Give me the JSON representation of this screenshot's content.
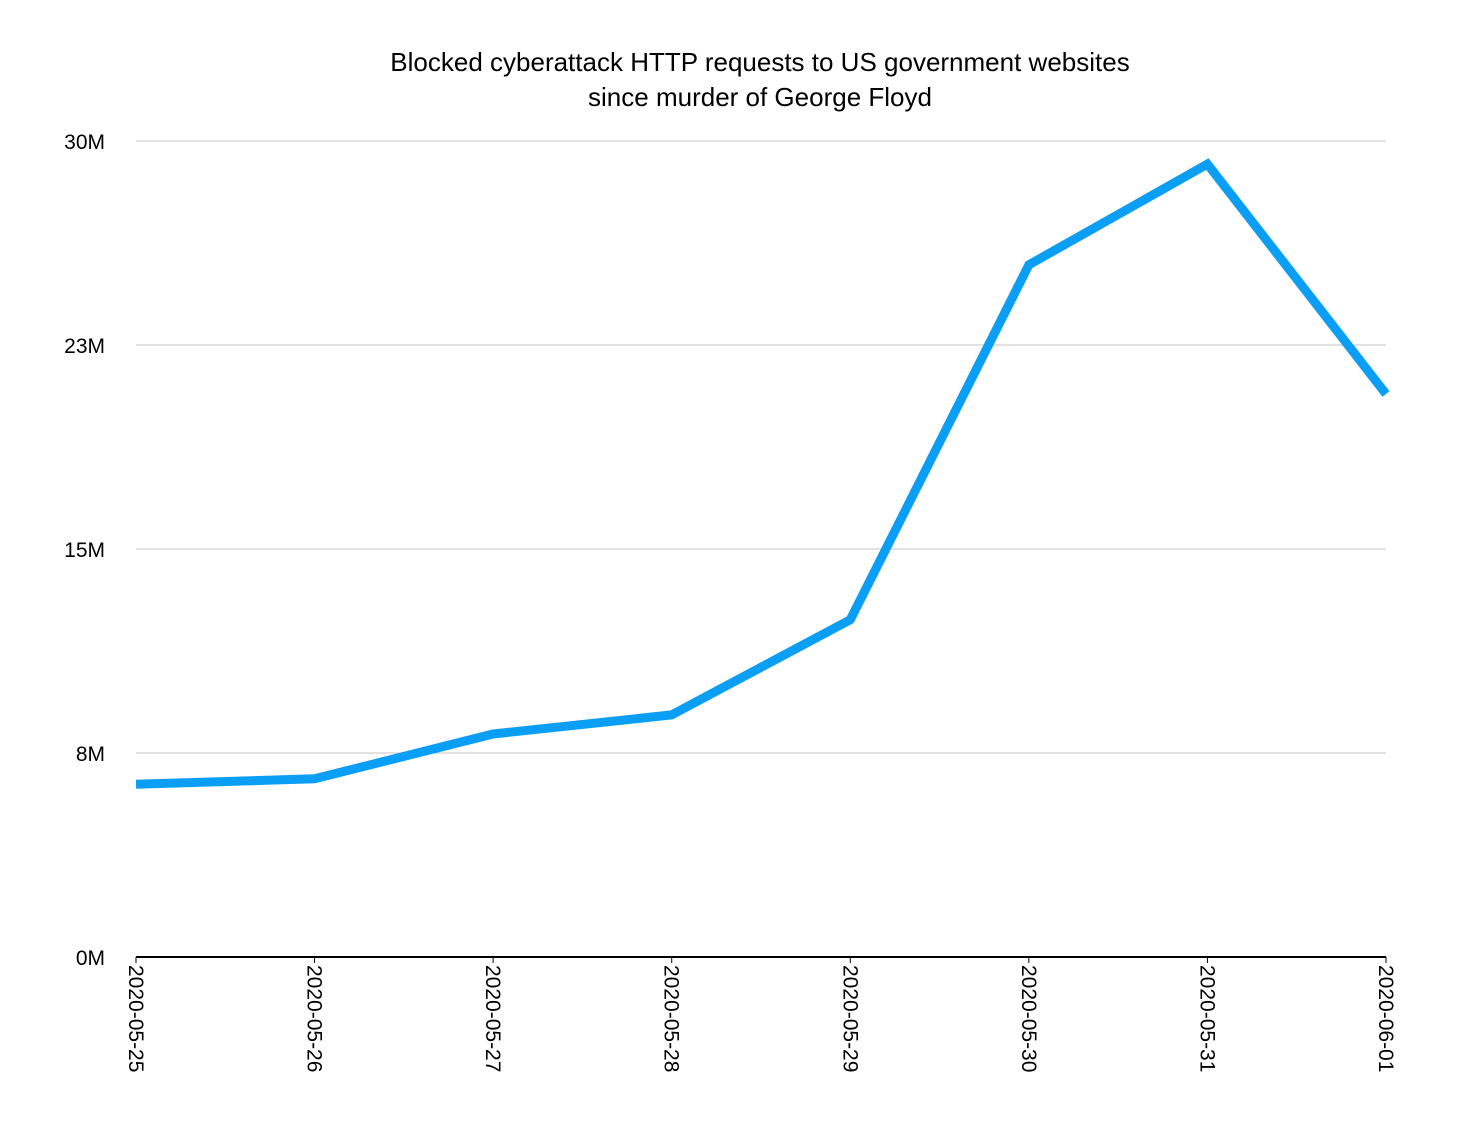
{
  "chart_data": {
    "type": "line",
    "title_lines": [
      "Blocked cyberattack HTTP requests to US government websites",
      "since murder of George Floyd"
    ],
    "xlabel": "",
    "ylabel": "",
    "categories": [
      "2020-05-25",
      "2020-05-26",
      "2020-05-27",
      "2020-05-28",
      "2020-05-29",
      "2020-05-30",
      "2020-05-31",
      "2020-06-01"
    ],
    "series": [
      {
        "values": [
          6.35,
          6.55,
          8.2,
          8.9,
          12.4,
          25.45,
          29.15,
          20.7
        ],
        "color": "#0a9ef5"
      }
    ],
    "ylim": [
      0,
      30
    ],
    "yticks": [
      {
        "value": 0,
        "label": "0M"
      },
      {
        "value": 7.5,
        "label": "8M"
      },
      {
        "value": 15,
        "label": "15M"
      },
      {
        "value": 22.5,
        "label": "23M"
      },
      {
        "value": 30,
        "label": "30M"
      }
    ],
    "grid": true,
    "legend": "none"
  }
}
